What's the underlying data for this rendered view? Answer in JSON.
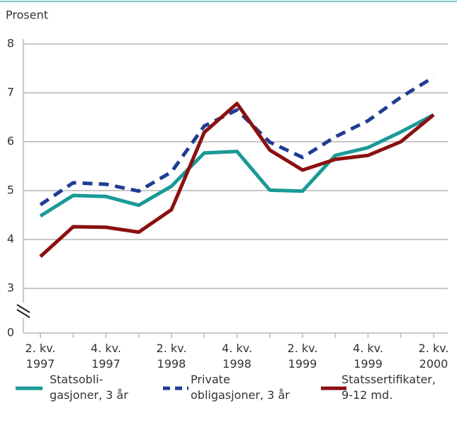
{
  "chart_data": {
    "type": "line",
    "y_label": "Prosent",
    "categories": [
      [
        "2. kv.",
        "1997"
      ],
      null,
      [
        "4. kv.",
        "1997"
      ],
      null,
      [
        "2. kv.",
        "1998"
      ],
      null,
      [
        "4. kv.",
        "1998"
      ],
      null,
      [
        "2. kv.",
        "1999"
      ],
      null,
      [
        "4. kv.",
        "1999"
      ],
      null,
      [
        "2. kv.",
        "2000"
      ]
    ],
    "series": [
      {
        "name": "Statsobli-\ngasjoner, 3 år",
        "color": "#1a9a97",
        "dash": false,
        "values": [
          4.48,
          4.9,
          4.88,
          4.7,
          5.09,
          5.77,
          5.8,
          5.01,
          4.99,
          5.72,
          5.88,
          6.2,
          6.55
        ]
      },
      {
        "name": "Private\nobligasjoner, 3 år",
        "color": "#1f3d95",
        "dash": true,
        "values": [
          4.71,
          5.16,
          5.13,
          4.99,
          5.38,
          6.32,
          6.65,
          5.99,
          5.68,
          6.1,
          6.43,
          6.91,
          7.32
        ]
      },
      {
        "name": "Statssertifikater,\n9-12 md.",
        "color": "#8b1010",
        "dash": false,
        "values": [
          3.65,
          4.26,
          4.25,
          4.15,
          4.61,
          6.19,
          6.78,
          5.83,
          5.42,
          5.64,
          5.72,
          6.0,
          6.55
        ]
      }
    ],
    "ylim": [
      0,
      8
    ],
    "axis_break": [
      0,
      3
    ],
    "yticks": [
      0,
      3,
      4,
      5,
      6,
      7,
      8
    ],
    "grid": true
  }
}
